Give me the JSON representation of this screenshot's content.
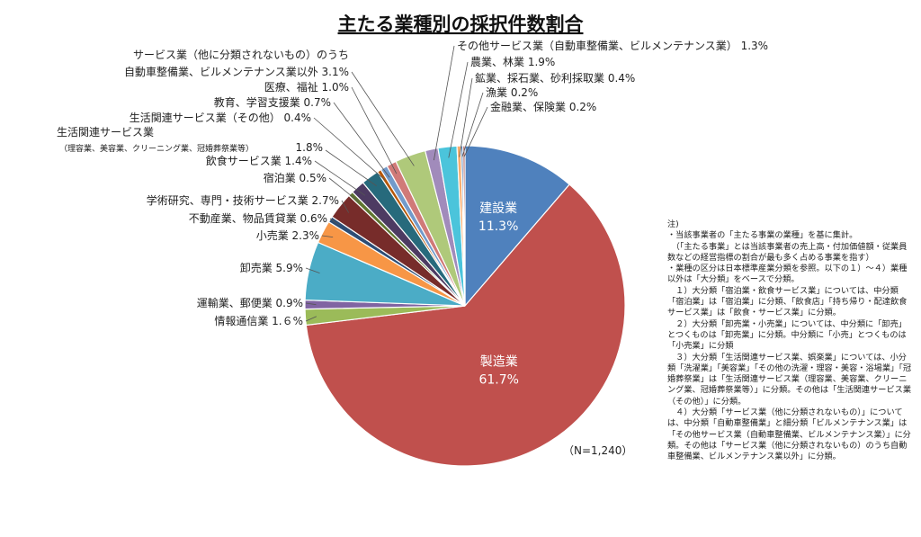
{
  "chart_data": {
    "type": "pie",
    "title": "主たる業種別の採択件数割合",
    "n_label": "（N=1,240）",
    "slices": [
      {
        "label": "建設業",
        "value_label": "11.3%",
        "value": 11.3,
        "color": "#4f81bd",
        "inside": true
      },
      {
        "label": "製造業",
        "value_label": "61.7%",
        "value": 61.7,
        "color": "#c0504d",
        "inside": true
      },
      {
        "label": "情報通信業 1.６%",
        "value": 1.6,
        "color": "#9bbb59"
      },
      {
        "label": "運輸業、郵便業 0.9%",
        "value": 0.9,
        "color": "#8064a2"
      },
      {
        "label": "卸売業 5.9%",
        "value": 5.9,
        "color": "#4bacc6"
      },
      {
        "label": "小売業 2.3%",
        "value": 2.3,
        "color": "#f79646"
      },
      {
        "label": "不動産業、物品賃貸業 0.6%",
        "value": 0.6,
        "color": "#2c4d75"
      },
      {
        "label": "学術研究、専門・技術サービス業 2.7%",
        "value": 2.7,
        "color": "#772c2a"
      },
      {
        "label": "宿泊業 0.5%",
        "value": 0.5,
        "color": "#5f7530"
      },
      {
        "label": "飲食サービス業 1.4%",
        "value": 1.4,
        "color": "#4d3b62"
      },
      {
        "label": "生活関連サービス業",
        "sublabel": "（理容業、美容業、クリーニング業、冠婚葬祭業等）",
        "suffix": "1.8%",
        "value": 1.8,
        "color": "#276a7c"
      },
      {
        "label": "生活関連サービス業（その他） 0.4%",
        "value": 0.4,
        "color": "#b65708"
      },
      {
        "label": "教育、学習支援業 0.7%",
        "value": 0.7,
        "color": "#729aca"
      },
      {
        "label": "医療、福祉 1.0%",
        "value": 1.0,
        "color": "#d07a78"
      },
      {
        "label": "サービス業（他に分類されないもの）のうち",
        "label2": "自動車整備業、ビルメンテナンス業以外 3.1%",
        "value": 3.1,
        "color": "#afc97a"
      },
      {
        "label": "その他サービス業（自動車整備業、ビルメンテナンス業） 1.3%",
        "value": 1.3,
        "color": "#a18bbb"
      },
      {
        "label": "農業、林業 1.9%",
        "value": 1.9,
        "color": "#4bc4db"
      },
      {
        "label": "鉱業、採石業、砂利採取業 0.4%",
        "value": 0.4,
        "color": "#f9ad6e"
      },
      {
        "label": "漁業 0.2%",
        "value": 0.2,
        "color": "#3a6aa8"
      },
      {
        "label": "金融業、保険業 0.2%",
        "value": 0.2,
        "color": "#a0403c"
      }
    ]
  },
  "notes": [
    "注)",
    "・当該事業者の「主たる事業の業種」を基に集計。",
    "　（「主たる事業」とは当該事業者の売上高・付加価値額・従業員数などの経営指標の割合が最も多く占める事業を指す）",
    "・業種の区分は日本標準産業分類を参照。以下の１）～４）業種以外は「大分類」をベースで分類。",
    "　１）大分類「宿泊業・飲食サービス業」については、中分類「宿泊業」は「宿泊業」に分類、「飲食店」「持ち帰り・配達飲食サービス業」は「飲食・サービス業」に分類。",
    "　２）大分類「卸売業・小売業」については、中分類に「卸売」とつくものは「卸売業」に分類。中分類に「小売」とつくものは「小売業」に分類",
    "　３）大分類「生活関連サービス業、娯楽業」については、小分類「洗濯業」「美容業」「その他の洗濯・理容・美容・浴場業」「冠婚葬祭業」は「生活関連サービス業（理容業、美容業、クリーニング業、冠婚葬祭業等）」に分類。その他は「生活関連サービス業（その他）」に分類。",
    "　４）大分類「サービス業（他に分類されないもの）」については、中分類「自動車整備業」と細分類「ビルメンテナンス業」は「その他サービス業（自動車整備業、ビルメンテナンス業）」に分類。その他は「サービス業（他に分類されないもの）のうち自動車整備業、ビルメンテナンス業以外」に分類。"
  ]
}
